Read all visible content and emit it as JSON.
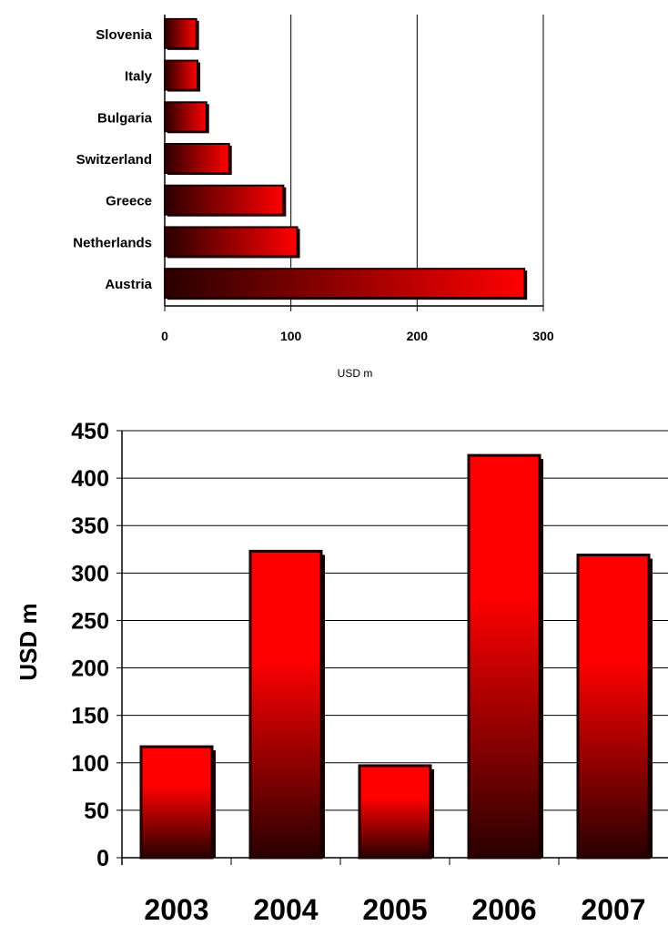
{
  "colors": {
    "bar_light": "#ff0000",
    "bar_dark": "#2a0000",
    "bar_edge": "#1a0000",
    "gridline": "#000000"
  },
  "chart_data": [
    {
      "type": "bar",
      "orientation": "horizontal",
      "categories": [
        "Slovenia",
        "Italy",
        "Bulgaria",
        "Switzerland",
        "Greece",
        "Netherlands",
        "Austria"
      ],
      "values": [
        25,
        26,
        33,
        51,
        94,
        105,
        285
      ],
      "xlabel": "USD m",
      "ylabel": "",
      "xlim": [
        0,
        300
      ],
      "xticks": [
        "0",
        "100",
        "200",
        "300"
      ],
      "grid": "vertical"
    },
    {
      "type": "bar",
      "orientation": "vertical",
      "categories": [
        "2003",
        "2004",
        "2005",
        "2006",
        "2007"
      ],
      "values": [
        117,
        323,
        97,
        424,
        319
      ],
      "xlabel": "",
      "ylabel": "USD m",
      "ylim": [
        0,
        450
      ],
      "yticks": [
        "0",
        "50",
        "100",
        "150",
        "200",
        "250",
        "300",
        "350",
        "400",
        "450"
      ],
      "grid": "horizontal"
    }
  ]
}
